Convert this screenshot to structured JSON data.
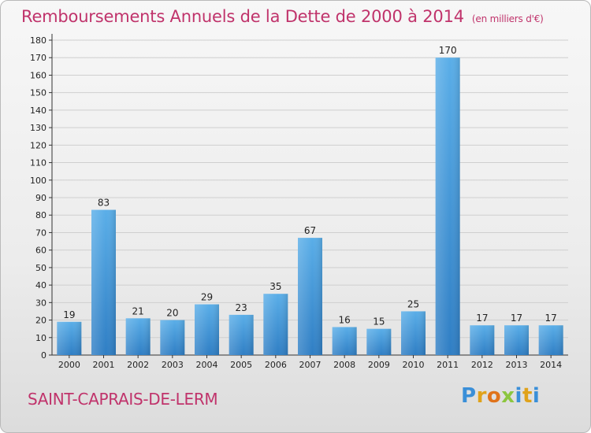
{
  "header": {
    "title": "Remboursements Annuels de la Dette de 2000 à 2014",
    "unit": "(en milliers d'€)"
  },
  "footer": {
    "commune": "SAINT-CAPRAIS-DE-LERM",
    "brand": "Proxiti"
  },
  "colors": {
    "title": "#c0336b",
    "bar_top": "#5aaee8",
    "bar_bottom": "#2f7ec4",
    "grid": "#cfcfcf"
  },
  "chart_data": {
    "type": "bar",
    "title": "Remboursements Annuels de la Dette de 2000 à 2014",
    "xlabel": "",
    "ylabel": "",
    "ylim": [
      0,
      180
    ],
    "ytick_step": 10,
    "grid": true,
    "categories": [
      "2000",
      "2001",
      "2002",
      "2003",
      "2004",
      "2005",
      "2006",
      "2007",
      "2008",
      "2009",
      "2010",
      "2011",
      "2012",
      "2013",
      "2014"
    ],
    "values": [
      19,
      83,
      21,
      20,
      29,
      23,
      35,
      67,
      16,
      15,
      25,
      170,
      17,
      17,
      17
    ]
  }
}
